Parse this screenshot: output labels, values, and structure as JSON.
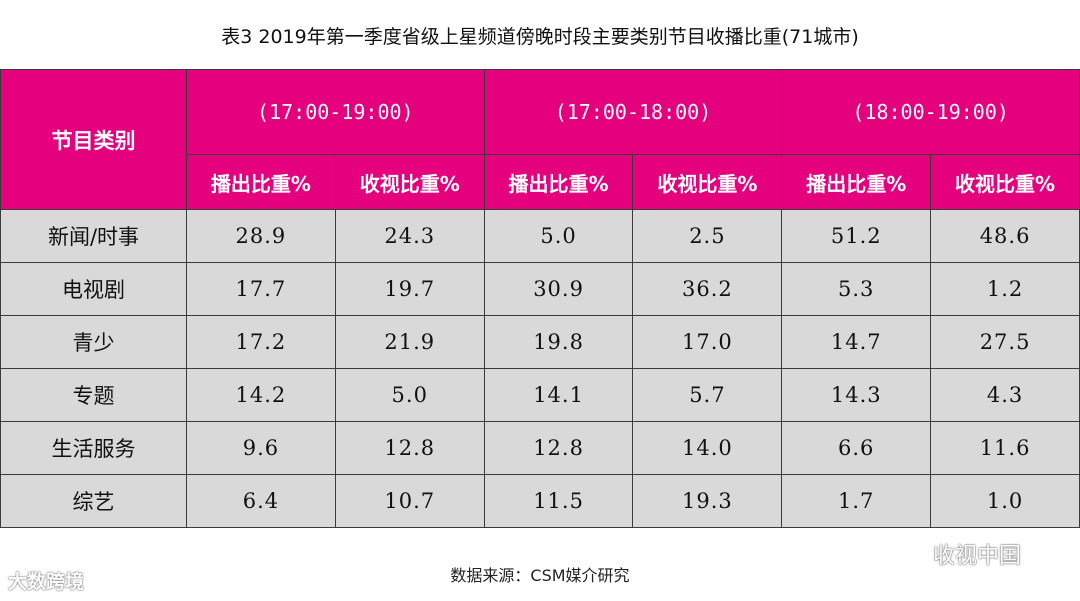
{
  "title": "表3  2019年第一季度省级上星频道傍晚时段主要类别节目收播比重(71城市)",
  "table": {
    "category_header": "节目类别",
    "groups": [
      "(17:00-19:00)",
      "(17:00-18:00)",
      "(18:00-19:00)"
    ],
    "sub_headers": [
      "播出比重%",
      "收视比重%",
      "播出比重%",
      "收视比重%",
      "播出比重%",
      "收视比重%"
    ],
    "rows": [
      {
        "label": "新闻/时事",
        "values": [
          "28.9",
          "24.3",
          "5.0",
          "2.5",
          "51.2",
          "48.6"
        ]
      },
      {
        "label": "电视剧",
        "values": [
          "17.7",
          "19.7",
          "30.9",
          "36.2",
          "5.3",
          "1.2"
        ]
      },
      {
        "label": "青少",
        "values": [
          "17.2",
          "21.9",
          "19.8",
          "17.0",
          "14.7",
          "27.5"
        ]
      },
      {
        "label": "专题",
        "values": [
          "14.2",
          "5.0",
          "14.1",
          "5.7",
          "14.3",
          "4.3"
        ]
      },
      {
        "label": "生活服务",
        "values": [
          "9.6",
          "12.8",
          "12.8",
          "14.0",
          "6.6",
          "11.6"
        ]
      },
      {
        "label": "综艺",
        "values": [
          "6.4",
          "10.7",
          "11.5",
          "19.3",
          "1.7",
          "1.0"
        ]
      }
    ]
  },
  "chart_data": {
    "type": "table",
    "title": "表3  2019年第一季度省级上星频道傍晚时段主要类别节目收播比重(71城市)",
    "columns": [
      "节目类别",
      "(17:00-19:00) 播出比重%",
      "(17:00-19:00) 收视比重%",
      "(17:00-18:00) 播出比重%",
      "(17:00-18:00) 收视比重%",
      "(18:00-19:00) 播出比重%",
      "(18:00-19:00) 收视比重%"
    ],
    "categories": [
      "新闻/时事",
      "电视剧",
      "青少",
      "专题",
      "生活服务",
      "综艺"
    ],
    "series": [
      {
        "name": "(17:00-19:00) 播出比重%",
        "values": [
          28.9,
          17.7,
          17.2,
          14.2,
          9.6,
          6.4
        ]
      },
      {
        "name": "(17:00-19:00) 收视比重%",
        "values": [
          24.3,
          19.7,
          21.9,
          5.0,
          12.8,
          10.7
        ]
      },
      {
        "name": "(17:00-18:00) 播出比重%",
        "values": [
          5.0,
          30.9,
          19.8,
          14.1,
          12.8,
          11.5
        ]
      },
      {
        "name": "(17:00-18:00) 收视比重%",
        "values": [
          2.5,
          36.2,
          17.0,
          5.7,
          14.0,
          19.3
        ]
      },
      {
        "name": "(18:00-19:00) 播出比重%",
        "values": [
          51.2,
          5.3,
          14.7,
          14.3,
          6.6,
          1.7
        ]
      },
      {
        "name": "(18:00-19:00) 收视比重%",
        "values": [
          48.6,
          1.2,
          27.5,
          4.3,
          11.6,
          1.0
        ]
      }
    ]
  },
  "source": "数据来源：CSM媒介研究",
  "watermarks": {
    "left": "大数跨境",
    "right": "收视中国",
    "right_icon": "wechat-icon"
  },
  "colors": {
    "header_bg": "#e5007e",
    "body_bg": "#d9d9d9"
  }
}
